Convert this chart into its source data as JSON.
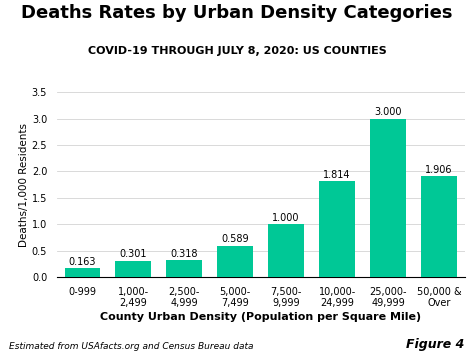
{
  "title": "Deaths Rates by Urban Density Categories",
  "subtitle": "COVID-19 THROUGH JULY 8, 2020: US COUNTIES",
  "categories": [
    "0-999",
    "1,000-\n2,499",
    "2,500-\n4,999",
    "5,000-\n7,499",
    "7,500-\n9,999",
    "10,000-\n24,999",
    "25,000-\n49,999",
    "50,000 &\nOver"
  ],
  "values": [
    0.163,
    0.301,
    0.318,
    0.589,
    1.0,
    1.814,
    3.0,
    1.906
  ],
  "bar_color": "#00C896",
  "ylabel": "Deaths/1,000 Residents",
  "xlabel": "County Urban Density (Population per Square Mile)",
  "ylim": [
    0,
    3.5
  ],
  "yticks": [
    0.0,
    0.5,
    1.0,
    1.5,
    2.0,
    2.5,
    3.0,
    3.5
  ],
  "footnote": "Estimated from USAfacts.org and Census Bureau data",
  "figure_label": "Figure 4",
  "background_color": "#ffffff",
  "title_fontsize": 13,
  "subtitle_fontsize": 8,
  "xlabel_fontsize": 8,
  "ylabel_fontsize": 7.5,
  "tick_fontsize": 7,
  "annotation_fontsize": 7,
  "footnote_fontsize": 6.5,
  "figure_label_fontsize": 9
}
